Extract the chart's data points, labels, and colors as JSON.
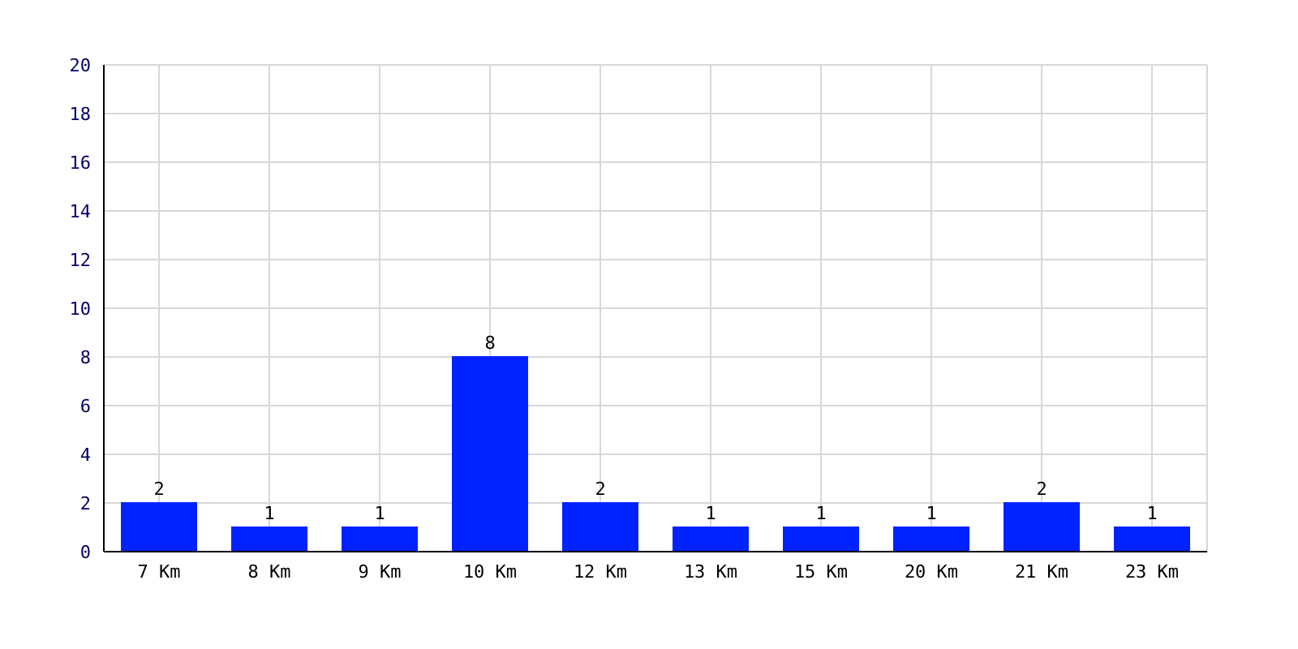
{
  "chart_data": {
    "type": "bar",
    "categories": [
      "7 Km",
      "8 Km",
      "9 Km",
      "10 Km",
      "12 Km",
      "13 Km",
      "15 Km",
      "20 Km",
      "21 Km",
      "23 Km"
    ],
    "values": [
      2,
      1,
      1,
      8,
      2,
      1,
      1,
      1,
      2,
      1
    ],
    "color": "#0022ff",
    "ylim": [
      0,
      20
    ],
    "yticks": [
      0,
      2,
      4,
      6,
      8,
      10,
      12,
      14,
      16,
      18,
      20
    ],
    "grid": true,
    "data_labels": true
  }
}
